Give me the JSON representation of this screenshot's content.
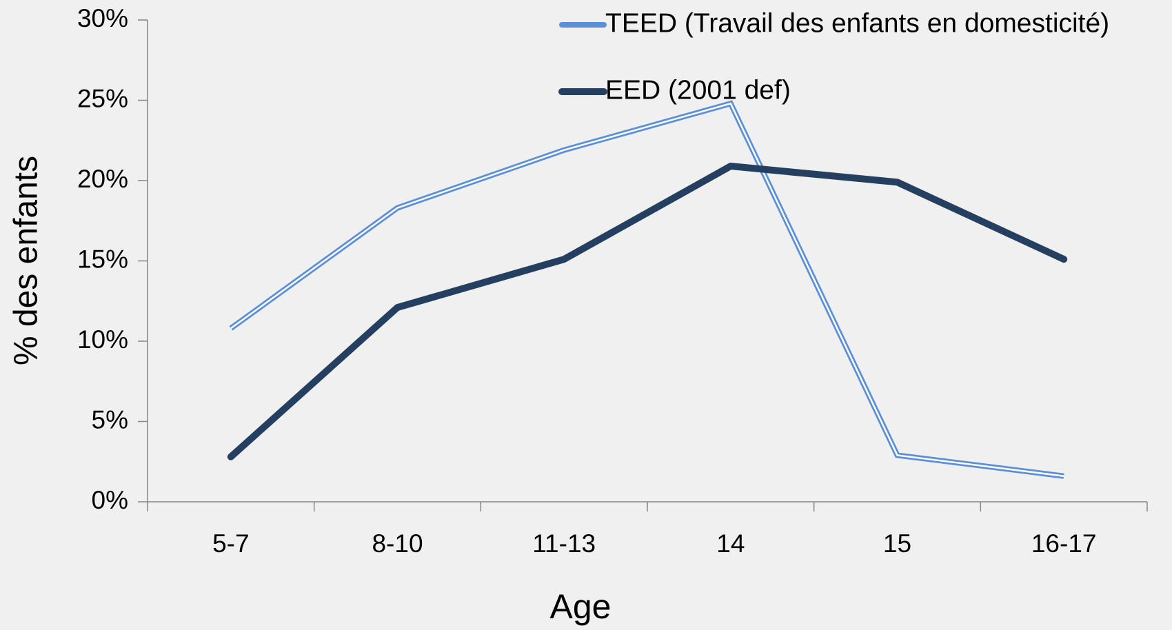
{
  "chart_data": {
    "type": "line",
    "x_label": "Age",
    "y_label": "% des enfants",
    "categories": [
      "5-7",
      "8-10",
      "11-13",
      "14",
      "15",
      "16-17"
    ],
    "series": [
      {
        "name": "TEED (Travail des enfants en domesticité)",
        "color": "#5b8fd6",
        "values": [
          10.8,
          18.3,
          21.9,
          24.8,
          2.9,
          1.6
        ]
      },
      {
        "name": "EED (2001 def)",
        "color": "#243f60",
        "values": [
          2.8,
          12.1,
          15.1,
          20.9,
          19.9,
          15.1
        ]
      }
    ],
    "ylim": [
      0,
      30
    ],
    "yticks": [
      {
        "value": 0,
        "label": "0%"
      },
      {
        "value": 5,
        "label": "5%"
      },
      {
        "value": 10,
        "label": "10%"
      },
      {
        "value": 15,
        "label": "15%"
      },
      {
        "value": 20,
        "label": "20%"
      },
      {
        "value": 25,
        "label": "25%"
      },
      {
        "value": 30,
        "label": "30%"
      }
    ],
    "grid": false,
    "legend": "top-right"
  }
}
